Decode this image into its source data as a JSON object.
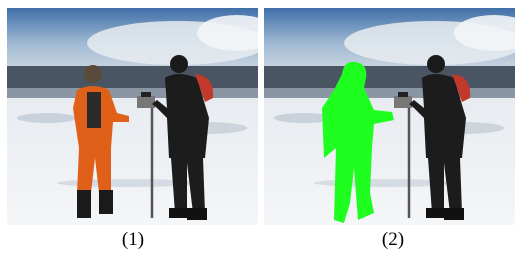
{
  "panels": [
    {
      "caption": "(1)"
    },
    {
      "caption": "(2)"
    }
  ]
}
